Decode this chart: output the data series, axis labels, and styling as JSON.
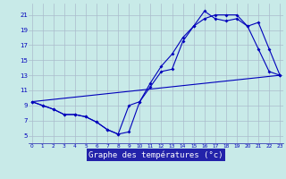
{
  "title": "Graphe des températures (°c)",
  "plot_bg": "#c8eae8",
  "label_bar_bg": "#2222aa",
  "label_bar_fg": "#ffffff",
  "grid_color": "#aabbcc",
  "line_color": "#0000bb",
  "x_ticks": [
    0,
    1,
    2,
    3,
    4,
    5,
    6,
    7,
    8,
    9,
    10,
    11,
    12,
    13,
    14,
    15,
    16,
    17,
    18,
    19,
    20,
    21,
    22,
    23
  ],
  "y_ticks": [
    5,
    7,
    9,
    11,
    13,
    15,
    17,
    19,
    21
  ],
  "xlim": [
    -0.3,
    23.3
  ],
  "ylim": [
    4.0,
    22.5
  ],
  "line1_x": [
    0,
    1,
    2,
    3,
    4,
    5,
    6,
    7,
    8,
    9,
    10,
    11,
    12,
    13,
    14,
    15,
    16,
    17,
    18,
    19,
    20,
    21,
    22,
    23
  ],
  "line1_y": [
    9.5,
    9.0,
    8.5,
    7.8,
    7.8,
    7.5,
    6.8,
    5.8,
    5.2,
    9.0,
    9.5,
    11.5,
    13.5,
    13.8,
    17.5,
    19.5,
    21.5,
    20.5,
    20.2,
    20.5,
    19.5,
    20.0,
    16.5,
    13.0
  ],
  "line2_x": [
    0,
    1,
    2,
    3,
    4,
    5,
    6,
    7,
    8,
    9,
    10,
    11,
    12,
    13,
    14,
    15,
    16,
    17,
    18,
    19,
    20,
    21,
    22,
    23
  ],
  "line2_y": [
    9.5,
    9.0,
    8.5,
    7.8,
    7.8,
    7.5,
    6.8,
    5.8,
    5.2,
    5.5,
    9.5,
    12.0,
    14.2,
    15.8,
    18.0,
    19.5,
    20.5,
    21.0,
    21.0,
    21.0,
    19.5,
    16.5,
    13.5,
    13.0
  ],
  "line3_x": [
    0,
    23
  ],
  "line3_y": [
    9.5,
    13.0
  ]
}
